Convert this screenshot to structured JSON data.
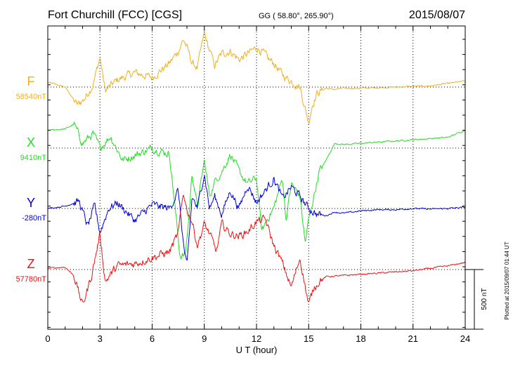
{
  "header": {
    "station": "Fort Churchill (FCC)  [CGS]",
    "coords": "GG ( 58.80°, 265.90°)",
    "date": "2015/08/07"
  },
  "side_note": "Plotted at 2015/09/07 01:44 UT",
  "chart_data": {
    "type": "line",
    "title": "Fort Churchill (FCC)  [CGS]",
    "xlabel": "U T (hour)",
    "xlim": [
      0,
      24
    ],
    "x_ticks": [
      "0",
      "3",
      "6",
      "9",
      "12",
      "15",
      "18",
      "21",
      "24"
    ],
    "scale_bar": {
      "label": "500 nT",
      "value_nT": 500
    },
    "series": [
      {
        "name": "F",
        "baseline_label": "58540nT",
        "color": "#f0b020",
        "x": [
          0,
          1,
          1.7,
          2.1,
          2.6,
          3.0,
          3.3,
          4.0,
          5.0,
          6.0,
          7.0,
          7.5,
          7.8,
          8.0,
          8.3,
          8.6,
          9.0,
          9.2,
          9.6,
          10.0,
          10.5,
          11.0,
          11.5,
          12.0,
          12.3,
          12.7,
          13.0,
          13.5,
          14.0,
          14.5,
          14.8,
          15.0,
          15.2,
          15.5,
          16.0,
          16.5,
          17.0,
          18.0,
          19.0,
          20.0,
          21.0,
          22.0,
          23.0,
          24.0
        ],
        "values": [
          40,
          0,
          -150,
          -100,
          20,
          250,
          -30,
          60,
          120,
          80,
          200,
          300,
          400,
          330,
          200,
          160,
          450,
          350,
          180,
          280,
          300,
          230,
          280,
          330,
          300,
          230,
          200,
          100,
          50,
          0,
          -180,
          -300,
          -150,
          -50,
          -10,
          -20,
          -10,
          -10,
          -5,
          0,
          5,
          10,
          30,
          50
        ]
      },
      {
        "name": "X",
        "baseline_label": "9410nT",
        "color": "#22dd22",
        "x": [
          0,
          1,
          1.5,
          2.0,
          2.6,
          3.0,
          3.6,
          4.3,
          5.0,
          6.0,
          7.0,
          7.6,
          7.9,
          8.1,
          8.3,
          8.6,
          9.0,
          9.3,
          9.7,
          10.0,
          10.5,
          11.0,
          11.5,
          12.0,
          12.3,
          12.6,
          13.0,
          13.5,
          13.7,
          14.0,
          14.5,
          14.8,
          15.0,
          15.3,
          15.6,
          16.0,
          16.5,
          17.0,
          18.0,
          19.0,
          20.0,
          21.0,
          22.0,
          23.0,
          24.0
        ],
        "values": [
          150,
          160,
          200,
          40,
          120,
          0,
          100,
          -100,
          -60,
          0,
          -50,
          -900,
          -900,
          -600,
          -200,
          -500,
          -100,
          -400,
          -250,
          -200,
          -50,
          -200,
          -300,
          -250,
          -700,
          -600,
          -500,
          -250,
          -600,
          -300,
          -400,
          -800,
          -600,
          -400,
          -200,
          -100,
          40,
          30,
          40,
          50,
          60,
          70,
          80,
          90,
          150
        ]
      },
      {
        "name": "Y",
        "baseline_label": "-280nT",
        "color": "#0000dd",
        "x": [
          0,
          1,
          1.8,
          2.3,
          2.7,
          3.0,
          3.5,
          4.0,
          5.0,
          6.0,
          7.0,
          7.5,
          7.8,
          8.0,
          8.3,
          8.6,
          9.0,
          9.3,
          9.6,
          10.0,
          10.5,
          11.0,
          11.5,
          12.0,
          12.5,
          13.0,
          13.5,
          14.0,
          14.5,
          15.0,
          15.5,
          16.0,
          16.5,
          17.0,
          18.0,
          19.0,
          20.0,
          21.0,
          22.0,
          23.0,
          24.0
        ],
        "values": [
          0,
          20,
          60,
          -150,
          20,
          -200,
          0,
          50,
          -100,
          30,
          0,
          150,
          -300,
          -500,
          100,
          0,
          300,
          0,
          100,
          -50,
          150,
          0,
          200,
          50,
          150,
          250,
          80,
          180,
          100,
          0,
          -50,
          -60,
          -30,
          -40,
          -20,
          -10,
          -10,
          0,
          -5,
          0,
          10
        ]
      },
      {
        "name": "Z",
        "baseline_label": "57780nT",
        "color": "#ee1111",
        "x": [
          0,
          1,
          1.5,
          2.0,
          2.5,
          2.8,
          3.0,
          3.3,
          4.0,
          5.0,
          6.0,
          7.0,
          7.5,
          7.8,
          8.0,
          8.3,
          8.6,
          9.0,
          9.3,
          9.7,
          10.0,
          10.5,
          11.0,
          11.5,
          12.0,
          12.5,
          13.0,
          13.5,
          14.0,
          14.5,
          15.0,
          15.3,
          15.7,
          16.0,
          17.0,
          18.0,
          19.0,
          20.0,
          21.0,
          22.0,
          23.0,
          24.0
        ],
        "values": [
          10,
          20,
          -50,
          -300,
          -60,
          150,
          300,
          -100,
          30,
          50,
          100,
          150,
          300,
          650,
          500,
          400,
          200,
          380,
          300,
          150,
          380,
          300,
          280,
          320,
          400,
          420,
          200,
          50,
          -150,
          100,
          -300,
          -150,
          -80,
          -60,
          -50,
          -40,
          -30,
          -20,
          -10,
          10,
          30,
          60
        ]
      }
    ]
  }
}
